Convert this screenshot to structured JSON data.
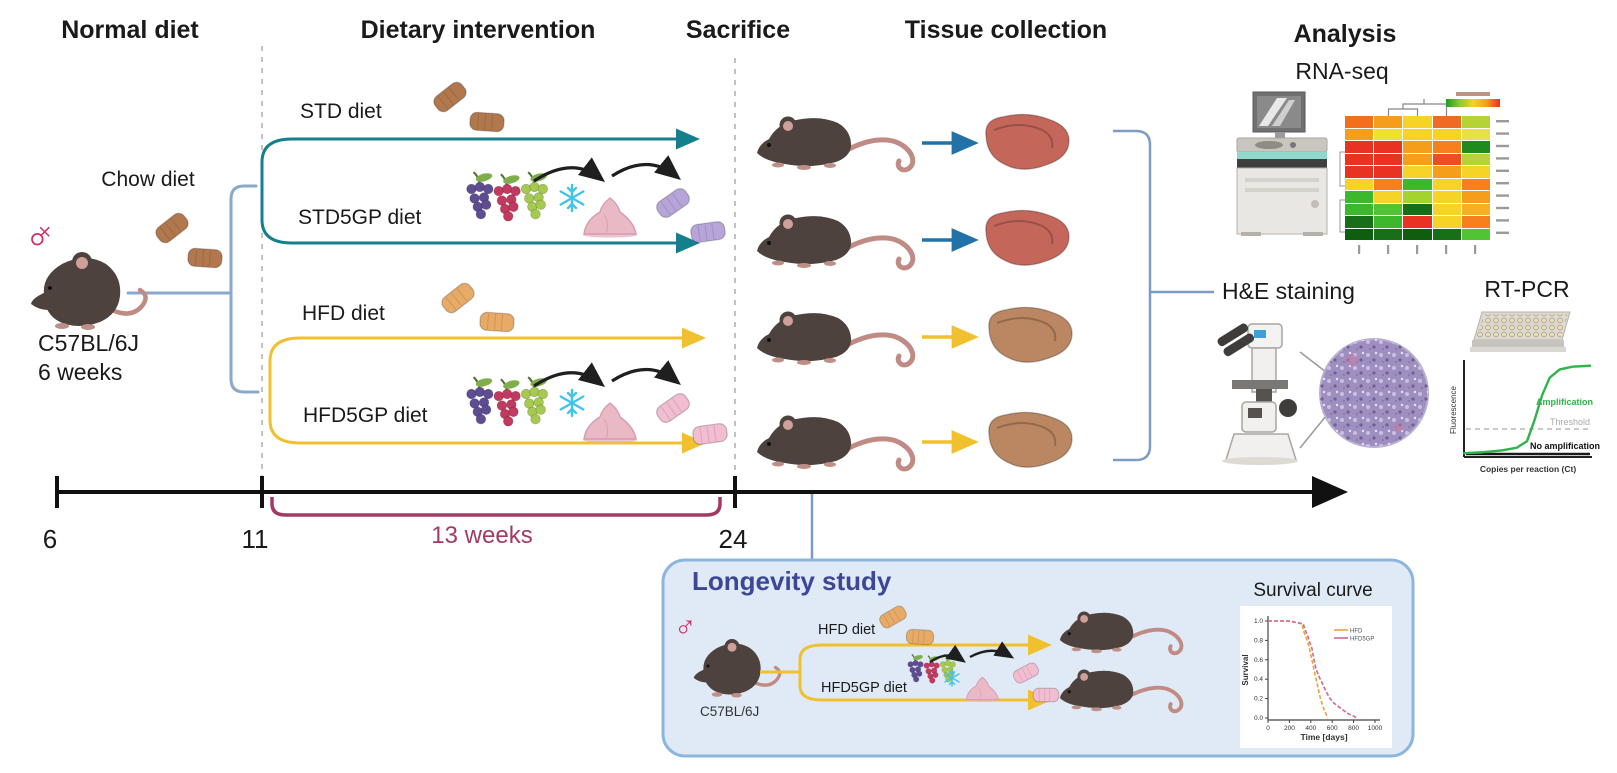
{
  "headers": {
    "c1": "Normal diet",
    "c2": "Dietary intervention",
    "c3": "Sacrifice",
    "c4": "Tissue collection",
    "c5": "Analysis"
  },
  "start": {
    "chow": "Chow diet",
    "strain": "C57BL/6J",
    "age": "6 weeks",
    "sex": "♀"
  },
  "arms": {
    "std": "STD diet",
    "std5gp": "STD5GP diet",
    "hfd": "HFD diet",
    "hfd5gp": "HFD5GP diet"
  },
  "timeline": {
    "t1": "6",
    "t2": "11",
    "t3": "24",
    "duration": "13 weeks"
  },
  "analysis": {
    "rnaseq": "RNA-seq",
    "he": "H&E staining",
    "pcr": "RT-PCR"
  },
  "pcr_labels": {
    "ylabel": "Fluorescence",
    "xlabel": "Copies per reaction (Ct)",
    "amp": "Amplification",
    "thr": "Threshold",
    "noamp": "No amplification"
  },
  "longevity": {
    "title": "Longevity study",
    "sex": "♂",
    "strain": "C57BL/6J",
    "arm1": "HFD diet",
    "arm2": "HFD5GP diet",
    "survival_title": "Survival curve"
  },
  "colors": {
    "teal_arrow": "#15808d",
    "gold_arrow": "#f0c02e",
    "blue_arrow": "#2272a8",
    "bracket_blue": "#7d9cc4",
    "duration_crimson": "#a23a66",
    "longevity_box_fill": "#dfeaf6",
    "longevity_box_border": "#8cb6dd",
    "longevity_title": "#3d4796",
    "sex_symbol_pink": "#ce2f63",
    "liver_red": "#c4675a",
    "liver_tan": "#bb8762",
    "mouse_body": "#4d423e"
  },
  "chart_data": [
    {
      "type": "heatmap",
      "title": "RNA-seq heatmap",
      "rows": 10,
      "cols": 5,
      "legend_position": "top-right colorbar green-to-red",
      "colors": [
        [
          "#f2701d",
          "#f59e1b",
          "#f5d327",
          "#ef6a24",
          "#b5d334"
        ],
        [
          "#f59e1b",
          "#f0e032",
          "#f5d327",
          "#f5d327",
          "#e8e04a"
        ],
        [
          "#e93322",
          "#e93322",
          "#f59e1b",
          "#f5801d",
          "#1f8b1f"
        ],
        [
          "#e93322",
          "#e93322",
          "#f59e1b",
          "#ed4d24",
          "#b5d334"
        ],
        [
          "#e93322",
          "#e93322",
          "#f5d327",
          "#f59e1b",
          "#f5d327"
        ],
        [
          "#f5d327",
          "#f5801d",
          "#3cb82c",
          "#f5d327",
          "#f5801d"
        ],
        [
          "#3cb82c",
          "#f5d327",
          "#a5d32e",
          "#f5d327",
          "#f59e1b"
        ],
        [
          "#3cb82c",
          "#52c433",
          "#176f17",
          "#f5d327",
          "#f5b122"
        ],
        [
          "#176f17",
          "#3cb82c",
          "#e93322",
          "#f5d327",
          "#f5801d"
        ],
        [
          "#0f5e10",
          "#176f17",
          "#0f5e10",
          "#176f17",
          "#52c433"
        ]
      ]
    },
    {
      "type": "line",
      "title": "RT-PCR amplification plot",
      "xlabel": "Copies per reaction (Ct)",
      "ylabel": "Fluorescence",
      "series": [
        {
          "name": "Amplification",
          "color": "#2fb34a",
          "points": [
            [
              0,
              0.02
            ],
            [
              0.15,
              0.03
            ],
            [
              0.3,
              0.05
            ],
            [
              0.42,
              0.08
            ],
            [
              0.5,
              0.15
            ],
            [
              0.56,
              0.38
            ],
            [
              0.62,
              0.65
            ],
            [
              0.68,
              0.84
            ],
            [
              0.76,
              0.93
            ],
            [
              0.86,
              0.96
            ],
            [
              1,
              0.97
            ]
          ]
        },
        {
          "name": "Threshold",
          "color": "#b9b9b9",
          "style": "dashed",
          "y": 0.28
        },
        {
          "name": "No amplification",
          "color": "#1a1a1a",
          "y": 0.03
        }
      ]
    },
    {
      "type": "line",
      "title": "Survival curve",
      "xlabel": "Time [days]",
      "ylabel": "Survival",
      "xlim": [
        0,
        1000
      ],
      "ylim": [
        0,
        1
      ],
      "xticks": [
        0,
        200,
        400,
        600,
        800,
        1000
      ],
      "yticks": [
        1.0,
        0.8,
        0.6,
        0.4,
        0.2,
        0.0
      ],
      "legend": [
        "HFD",
        "HFD5GP"
      ],
      "series": [
        {
          "name": "HFD",
          "color": "#e8a43c",
          "points": [
            [
              0,
              1
            ],
            [
              200,
              1
            ],
            [
              320,
              0.97
            ],
            [
              330,
              0.9
            ],
            [
              350,
              0.85
            ],
            [
              380,
              0.75
            ],
            [
              400,
              0.65
            ],
            [
              430,
              0.5
            ],
            [
              460,
              0.35
            ],
            [
              490,
              0.2
            ],
            [
              520,
              0.1
            ],
            [
              550,
              0.02
            ],
            [
              560,
              0
            ]
          ]
        },
        {
          "name": "HFD5GP",
          "color": "#d2688c",
          "points": [
            [
              0,
              1
            ],
            [
              200,
              1
            ],
            [
              330,
              0.97
            ],
            [
              350,
              0.9
            ],
            [
              370,
              0.85
            ],
            [
              390,
              0.78
            ],
            [
              410,
              0.72
            ],
            [
              430,
              0.6
            ],
            [
              450,
              0.5
            ],
            [
              480,
              0.42
            ],
            [
              510,
              0.35
            ],
            [
              540,
              0.28
            ],
            [
              580,
              0.2
            ],
            [
              620,
              0.15
            ],
            [
              680,
              0.1
            ],
            [
              740,
              0.05
            ],
            [
              800,
              0.02
            ],
            [
              830,
              0
            ]
          ]
        }
      ]
    }
  ]
}
